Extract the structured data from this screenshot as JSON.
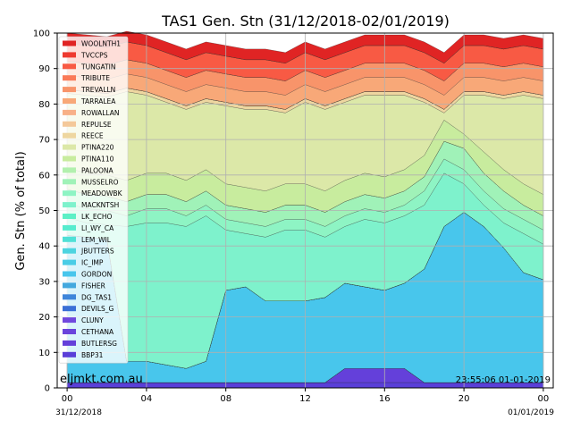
{
  "chart_data": {
    "type": "area",
    "title": "TAS1 Gen. Stn (31/12/2018-02/01/2019)",
    "ylabel": "Gen. Stn (% of total)",
    "xlabel": "",
    "ylim": [
      0,
      100
    ],
    "yticks": [
      0,
      10,
      20,
      30,
      40,
      50,
      60,
      70,
      80,
      90,
      100
    ],
    "xlim_hours": [
      -0.5,
      24.5
    ],
    "xticks": [
      {
        "hour": 0,
        "label": "00"
      },
      {
        "hour": 4,
        "label": "04"
      },
      {
        "hour": 8,
        "label": "08"
      },
      {
        "hour": 12,
        "label": "12"
      },
      {
        "hour": 16,
        "label": "16"
      },
      {
        "hour": 20,
        "label": "20"
      },
      {
        "hour": 24,
        "label": "00"
      }
    ],
    "date_labels": [
      "31/12/2018",
      "01/01/2019"
    ],
    "grid": true,
    "legend_position": "upper-left",
    "watermark": "eljmkt.com.au",
    "timestamp": "23:55:06 01-01-2019",
    "x_hours": [
      0,
      1,
      2,
      3,
      4,
      5,
      6,
      7,
      8,
      9,
      10,
      11,
      12,
      13,
      14,
      15,
      16,
      17,
      18,
      19,
      20,
      21,
      22,
      23,
      24
    ],
    "series": [
      {
        "name": "BBP31",
        "color": "#5a3fd8",
        "values": [
          1.5,
          1.5,
          1.5,
          1.5,
          1.5,
          1.5,
          1.5,
          1.5,
          1.5,
          1.5,
          1.5,
          1.5,
          1.5,
          1.5,
          1.5,
          1.5,
          1.5,
          1.5,
          1.5,
          1.5,
          1.5,
          1.5,
          1.5,
          1.5,
          1.5
        ]
      },
      {
        "name": "BUTLERSG",
        "color": "#6440da",
        "values": [
          0,
          0,
          0,
          0,
          0,
          0,
          0,
          0,
          0,
          0,
          0,
          0,
          0,
          0,
          4,
          4,
          4,
          4,
          0,
          0,
          0,
          0,
          0,
          0,
          0
        ]
      },
      {
        "name": "CETHANA",
        "color": "#6a44dc",
        "values": [
          0,
          0,
          0,
          0,
          0,
          0,
          0,
          0,
          0,
          0,
          0,
          0,
          0,
          0,
          0,
          0,
          0,
          0,
          0,
          0,
          0,
          0,
          0,
          0,
          0
        ]
      },
      {
        "name": "CLUNY",
        "color": "#7048de",
        "values": [
          0,
          0,
          0,
          0,
          0,
          0,
          0,
          0,
          0,
          0,
          0,
          0,
          0,
          0,
          0,
          0,
          0,
          0,
          0,
          0,
          0,
          0,
          0,
          0,
          0
        ]
      },
      {
        "name": "DEVILS_G",
        "color": "#3a6fd6",
        "values": [
          0,
          0,
          0,
          0,
          0,
          0,
          0,
          0,
          0,
          0,
          0,
          0,
          0,
          0,
          0,
          0,
          0,
          0,
          0,
          0,
          0,
          0,
          0,
          0,
          0
        ]
      },
      {
        "name": "DG_TAS1",
        "color": "#3f86da",
        "values": [
          0,
          0,
          0,
          0,
          0,
          0,
          0,
          0,
          0,
          0,
          0,
          0,
          0,
          0,
          0,
          0,
          0,
          0,
          0,
          0,
          0,
          0,
          0,
          0,
          0
        ]
      },
      {
        "name": "FISHER",
        "color": "#44a8de",
        "values": [
          0,
          0,
          0,
          0,
          0,
          0,
          0,
          0,
          0,
          0,
          0,
          0,
          0,
          0,
          0,
          0,
          0,
          0,
          0,
          0,
          0,
          0,
          0,
          0,
          0
        ]
      },
      {
        "name": "GORDON",
        "color": "#48c6ec",
        "values": [
          41.5,
          41,
          40.5,
          6,
          6,
          5,
          4,
          6,
          26,
          27,
          23,
          23,
          23,
          24,
          24,
          23,
          22,
          24,
          32,
          44,
          48,
          44,
          38,
          31,
          29
        ]
      },
      {
        "name": "IC_IMP",
        "color": "#4acde6",
        "values": [
          0,
          0,
          0,
          0,
          0,
          0,
          0,
          0,
          0,
          0,
          0,
          0,
          0,
          0,
          0,
          0,
          0,
          0,
          0,
          0,
          0,
          0,
          0,
          0,
          0
        ]
      },
      {
        "name": "JBUTTERS",
        "color": "#4dd4e0",
        "values": [
          0,
          0,
          0,
          0,
          0,
          0,
          0,
          0,
          0,
          0,
          0,
          0,
          0,
          0,
          0,
          0,
          0,
          0,
          0,
          0,
          0,
          0,
          0,
          0,
          0
        ]
      },
      {
        "name": "LEM_WIL",
        "color": "#50e0d6",
        "values": [
          0,
          0,
          0,
          0,
          0,
          0,
          0,
          0,
          0,
          0,
          0,
          0,
          0,
          0,
          0,
          0,
          0,
          0,
          0,
          0,
          0,
          0,
          0,
          0,
          0
        ]
      },
      {
        "name": "LI_WY_CA",
        "color": "#56ecce",
        "values": [
          0,
          0,
          0,
          0,
          0,
          0,
          0,
          0,
          0,
          0,
          0,
          0,
          0,
          0,
          0,
          0,
          0,
          0,
          0,
          0,
          0,
          0,
          0,
          0,
          0
        ]
      },
      {
        "name": "LK_ECHO",
        "color": "#5ef0c6",
        "values": [
          0,
          0,
          0,
          0,
          0,
          0,
          0,
          0,
          0,
          0,
          0,
          0,
          0,
          0,
          0,
          0,
          0,
          0,
          0,
          0,
          0,
          0,
          0,
          0,
          0
        ]
      },
      {
        "name": "MACKNTSH",
        "color": "#7ef2cc",
        "values": [
          5,
          4,
          4,
          38,
          39,
          40,
          40,
          41,
          17,
          15,
          18,
          20,
          20,
          17,
          16,
          19,
          19,
          19,
          18,
          15,
          8,
          6,
          7,
          11,
          10
        ]
      },
      {
        "name": "MEADOWBK",
        "color": "#8ef4c4",
        "values": [
          4,
          4,
          4,
          3,
          4,
          4,
          3,
          3,
          3,
          3,
          3,
          3,
          3,
          3,
          3,
          3,
          3,
          3,
          4,
          4,
          4,
          4,
          4,
          4,
          4
        ]
      },
      {
        "name": "MUSSELRO",
        "color": "#a0f2b8",
        "values": [
          4,
          4,
          4,
          4,
          4,
          4,
          4,
          4,
          4,
          4,
          4,
          4,
          4,
          4,
          4,
          4,
          4,
          4,
          4,
          5,
          6,
          5,
          5,
          4,
          4
        ]
      },
      {
        "name": "PALOONA",
        "color": "#b2f0ae",
        "values": [
          0,
          0,
          0,
          0,
          0,
          0,
          0,
          0,
          0,
          0,
          0,
          0,
          0,
          0,
          0,
          0,
          0,
          0,
          0,
          0,
          0,
          0,
          0,
          0,
          0
        ]
      },
      {
        "name": "PTINA110",
        "color": "#c8ec9e",
        "values": [
          6,
          6,
          6,
          6,
          6,
          6,
          6,
          6,
          6,
          6,
          6,
          6,
          6,
          6,
          6,
          6,
          6,
          6,
          6,
          6,
          4,
          6,
          6,
          6,
          6
        ]
      },
      {
        "name": "PTINA220",
        "color": "#dce8a8",
        "values": [
          21,
          22,
          22,
          25,
          22,
          20,
          20,
          19,
          22,
          22,
          23,
          20,
          23,
          23,
          22,
          22,
          23,
          21,
          15,
          2,
          11,
          16,
          20,
          25,
          27
        ]
      },
      {
        "name": "REECE",
        "color": "#eed6a0",
        "values": [
          1,
          1,
          1,
          1,
          1,
          1,
          1,
          1,
          1,
          1,
          1,
          1,
          1,
          1,
          1,
          1,
          1,
          1,
          1,
          1,
          1,
          1,
          1,
          1,
          1
        ]
      },
      {
        "name": "REPULSE",
        "color": "#f4c89a",
        "values": [
          0,
          0,
          0,
          0,
          0,
          0,
          0,
          0,
          0,
          0,
          0,
          0,
          0,
          0,
          0,
          0,
          0,
          0,
          0,
          0,
          0,
          0,
          0,
          0,
          0
        ]
      },
      {
        "name": "ROWALLAN",
        "color": "#f8b088",
        "values": [
          0,
          0,
          0,
          0,
          0,
          0,
          0,
          0,
          0,
          0,
          0,
          0,
          0,
          0,
          0,
          0,
          0,
          0,
          0,
          0,
          0,
          0,
          0,
          0,
          0
        ]
      },
      {
        "name": "TARRALEA",
        "color": "#f8a878",
        "values": [
          4,
          4,
          4,
          4,
          4,
          4,
          4,
          4,
          4,
          4,
          4,
          4,
          4,
          4,
          4,
          4,
          4,
          4,
          4,
          4,
          4,
          4,
          4,
          4,
          4
        ]
      },
      {
        "name": "TREVALLN",
        "color": "#f8946a",
        "values": [
          4,
          4,
          4,
          4,
          4,
          4,
          4,
          4,
          4,
          4,
          4,
          4,
          4,
          4,
          4,
          4,
          4,
          4,
          4,
          4,
          4,
          4,
          4,
          4,
          4
        ]
      },
      {
        "name": "TRIBUTE",
        "color": "#fa7a58",
        "values": [
          0,
          0,
          0,
          0,
          0,
          0,
          0,
          0,
          0,
          0,
          0,
          0,
          0,
          0,
          0,
          0,
          0,
          0,
          0,
          0,
          0,
          0,
          0,
          0,
          0
        ]
      },
      {
        "name": "TUNGATIN",
        "color": "#f85a44",
        "values": [
          5,
          5,
          5,
          5,
          5,
          5,
          5,
          5,
          5,
          5,
          5,
          5,
          5,
          5,
          5,
          5,
          5,
          5,
          5,
          5,
          5,
          5,
          5,
          5,
          5
        ]
      },
      {
        "name": "TVCCPS",
        "color": "#ee3a30",
        "values": [
          0,
          0,
          0,
          0,
          0,
          0,
          0,
          0,
          0,
          0,
          0,
          0,
          0,
          0,
          0,
          0,
          0,
          0,
          0,
          0,
          0,
          0,
          0,
          0,
          0
        ]
      },
      {
        "name": "WOOLNTH1",
        "color": "#e02424",
        "values": [
          3,
          3,
          3,
          3,
          3,
          3,
          3,
          3,
          3,
          3,
          3,
          3,
          3,
          3,
          3,
          3,
          3,
          3,
          3,
          3,
          3,
          3,
          3,
          3,
          3
        ]
      }
    ]
  }
}
